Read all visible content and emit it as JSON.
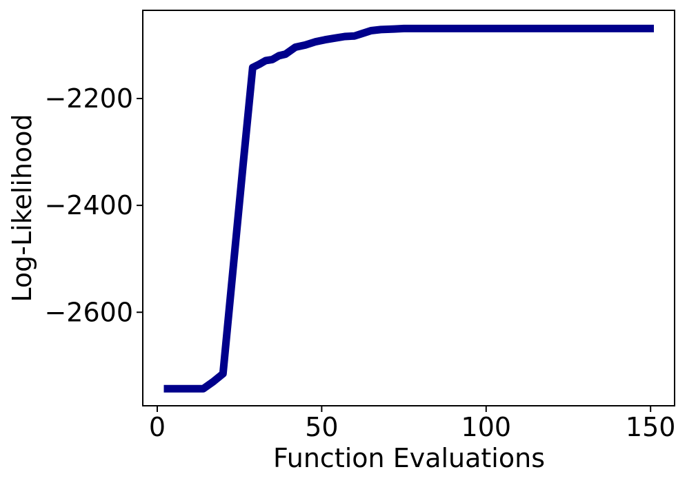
{
  "figure": {
    "background_color": "#ffffff",
    "text_color": "#000000",
    "axis_color": "#000000",
    "spine_width": 2,
    "tick_length": 9,
    "tick_width": 2
  },
  "chart_data": {
    "type": "line",
    "title": "",
    "xlabel": "Function Evaluations",
    "ylabel": "Log-Likelihood",
    "xlim": [
      -4.4,
      157.3
    ],
    "ylim": [
      -2775,
      -2035
    ],
    "grid": false,
    "legend": false,
    "x_ticks": [
      {
        "value": 0,
        "label": "0"
      },
      {
        "value": 50,
        "label": "50"
      },
      {
        "value": 100,
        "label": "100"
      },
      {
        "value": 150,
        "label": "150"
      }
    ],
    "y_ticks": [
      {
        "value": -2200,
        "label": "−2200"
      },
      {
        "value": -2400,
        "label": "−2400"
      },
      {
        "value": -2600,
        "label": "−2600"
      }
    ],
    "series": [
      {
        "name": "log-likelihood-optimization-trace",
        "color": "#00008B",
        "line_width": 11,
        "marker": "none",
        "x": [
          2,
          5,
          8,
          11,
          14,
          17,
          20,
          23,
          26,
          29,
          31,
          33,
          35,
          37,
          39,
          42,
          45,
          48,
          51,
          54,
          57,
          60,
          62,
          65,
          68,
          72,
          75,
          80,
          85,
          90,
          95,
          100,
          110,
          120,
          130,
          140,
          151
        ],
        "y": [
          -2743,
          -2743,
          -2743,
          -2743,
          -2743,
          -2730,
          -2715,
          -2523,
          -2331,
          -2142,
          -2136,
          -2129,
          -2127,
          -2120,
          -2117,
          -2104,
          -2100,
          -2094,
          -2090,
          -2087,
          -2084,
          -2083,
          -2079,
          -2073,
          -2071,
          -2070,
          -2069,
          -2069,
          -2069,
          -2069,
          -2069,
          -2069,
          -2069,
          -2069,
          -2069,
          -2069,
          -2069
        ]
      }
    ]
  }
}
